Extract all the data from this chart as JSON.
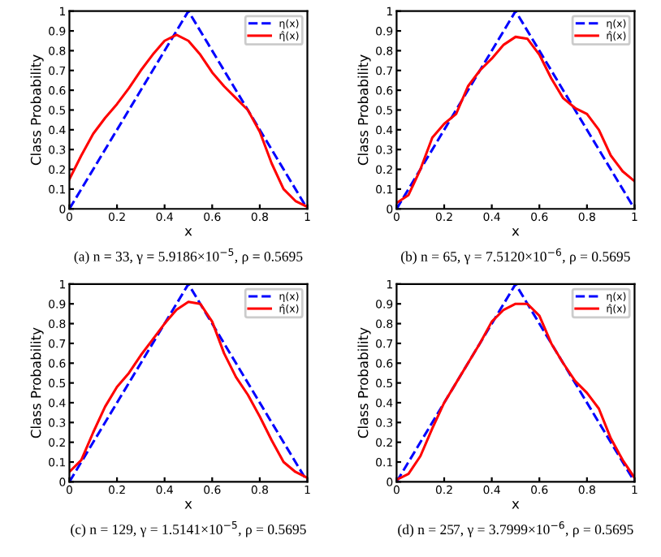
{
  "chart_data": [
    {
      "type": "line",
      "xlabel": "x",
      "ylabel": "Class Probability",
      "annotations": [
        "(a) n = 33, γ = 5.9186×10$^{−5}$, ρ = 0.5695"
      ],
      "xlim": [
        0,
        1
      ],
      "ylim": [
        0,
        1
      ],
      "xticks": [
        0,
        0.2,
        0.4,
        0.6,
        0.8,
        1
      ],
      "yticks": [
        0,
        0.1,
        0.2,
        0.3,
        0.4,
        0.5,
        0.6,
        0.7,
        0.8,
        0.9,
        1
      ],
      "legend": "top right",
      "grid": false,
      "marker": "none",
      "series": [
        {
          "name": "η(x)",
          "color": "#0000ff",
          "line_style": "dashed",
          "x": [
            0,
            0.5,
            1
          ],
          "values": [
            0,
            1,
            0
          ]
        },
        {
          "name": "η̂(x)",
          "color": "#ff0000",
          "line_style": "solid",
          "x": [
            0,
            0.05,
            0.1,
            0.15,
            0.2,
            0.25,
            0.3,
            0.35,
            0.4,
            0.45,
            0.5,
            0.55,
            0.6,
            0.65,
            0.7,
            0.75,
            0.8,
            0.85,
            0.9,
            0.95,
            1
          ],
          "values": [
            0.15,
            0.27,
            0.38,
            0.46,
            0.53,
            0.61,
            0.7,
            0.78,
            0.85,
            0.88,
            0.85,
            0.78,
            0.69,
            0.62,
            0.56,
            0.5,
            0.39,
            0.23,
            0.1,
            0.04,
            0.01
          ]
        }
      ]
    },
    {
      "type": "line",
      "xlabel": "x",
      "ylabel": "Class Probability",
      "annotations": [
        "(b) n = 65, γ = 7.5120×10$^{−6}$, ρ = 0.5695"
      ],
      "xlim": [
        0,
        1
      ],
      "ylim": [
        0,
        1
      ],
      "xticks": [
        0,
        0.2,
        0.4,
        0.6,
        0.8,
        1
      ],
      "yticks": [
        0,
        0.1,
        0.2,
        0.3,
        0.4,
        0.5,
        0.6,
        0.7,
        0.8,
        0.9,
        1
      ],
      "legend": "top right",
      "grid": false,
      "marker": "none",
      "series": [
        {
          "name": "η(x)",
          "color": "#0000ff",
          "line_style": "dashed",
          "x": [
            0,
            0.5,
            1
          ],
          "values": [
            0,
            1,
            0
          ]
        },
        {
          "name": "η̂(x)",
          "color": "#ff0000",
          "line_style": "solid",
          "x": [
            0,
            0.05,
            0.1,
            0.15,
            0.2,
            0.25,
            0.3,
            0.35,
            0.4,
            0.45,
            0.5,
            0.55,
            0.6,
            0.65,
            0.7,
            0.75,
            0.8,
            0.85,
            0.9,
            0.95,
            1
          ],
          "values": [
            0.03,
            0.07,
            0.2,
            0.36,
            0.43,
            0.48,
            0.62,
            0.7,
            0.76,
            0.83,
            0.87,
            0.86,
            0.78,
            0.66,
            0.56,
            0.51,
            0.48,
            0.4,
            0.27,
            0.19,
            0.14
          ]
        }
      ]
    },
    {
      "type": "line",
      "xlabel": "x",
      "ylabel": "Class Probability",
      "annotations": [
        "(c) n = 129, γ = 1.5141×10$^{−5}$, ρ = 0.5695"
      ],
      "xlim": [
        0,
        1
      ],
      "ylim": [
        0,
        1
      ],
      "xticks": [
        0,
        0.2,
        0.4,
        0.6,
        0.8,
        1
      ],
      "yticks": [
        0,
        0.1,
        0.2,
        0.3,
        0.4,
        0.5,
        0.6,
        0.7,
        0.8,
        0.9,
        1
      ],
      "legend": "top right",
      "grid": false,
      "marker": "none",
      "series": [
        {
          "name": "η(x)",
          "color": "#0000ff",
          "line_style": "dashed",
          "x": [
            0,
            0.5,
            1
          ],
          "values": [
            0,
            1,
            0
          ]
        },
        {
          "name": "η̂(x)",
          "color": "#ff0000",
          "line_style": "solid",
          "x": [
            0,
            0.05,
            0.1,
            0.15,
            0.2,
            0.25,
            0.3,
            0.35,
            0.4,
            0.45,
            0.5,
            0.55,
            0.6,
            0.65,
            0.7,
            0.75,
            0.8,
            0.85,
            0.9,
            0.95,
            1
          ],
          "values": [
            0.05,
            0.11,
            0.25,
            0.38,
            0.48,
            0.55,
            0.64,
            0.72,
            0.8,
            0.87,
            0.91,
            0.9,
            0.81,
            0.65,
            0.53,
            0.44,
            0.33,
            0.21,
            0.1,
            0.05,
            0.02
          ]
        }
      ]
    },
    {
      "type": "line",
      "xlabel": "x",
      "ylabel": "Class Probability",
      "annotations": [
        "(d) n = 257, γ = 3.7999×10$^{−6}$, ρ = 0.5695"
      ],
      "xlim": [
        0,
        1
      ],
      "ylim": [
        0,
        1
      ],
      "xticks": [
        0,
        0.2,
        0.4,
        0.6,
        0.8,
        1
      ],
      "yticks": [
        0,
        0.1,
        0.2,
        0.3,
        0.4,
        0.5,
        0.6,
        0.7,
        0.8,
        0.9,
        1
      ],
      "legend": "top right",
      "grid": false,
      "marker": "none",
      "series": [
        {
          "name": "η(x)",
          "color": "#0000ff",
          "line_style": "dashed",
          "x": [
            0,
            0.5,
            1
          ],
          "values": [
            0,
            1,
            0
          ]
        },
        {
          "name": "η̂(x)",
          "color": "#ff0000",
          "line_style": "solid",
          "x": [
            0,
            0.05,
            0.1,
            0.15,
            0.2,
            0.25,
            0.3,
            0.35,
            0.4,
            0.45,
            0.5,
            0.55,
            0.6,
            0.65,
            0.7,
            0.75,
            0.8,
            0.85,
            0.9,
            0.95,
            1
          ],
          "values": [
            0.01,
            0.04,
            0.13,
            0.27,
            0.4,
            0.5,
            0.6,
            0.7,
            0.81,
            0.87,
            0.9,
            0.9,
            0.84,
            0.7,
            0.6,
            0.51,
            0.45,
            0.37,
            0.22,
            0.11,
            0.02
          ]
        }
      ]
    }
  ]
}
